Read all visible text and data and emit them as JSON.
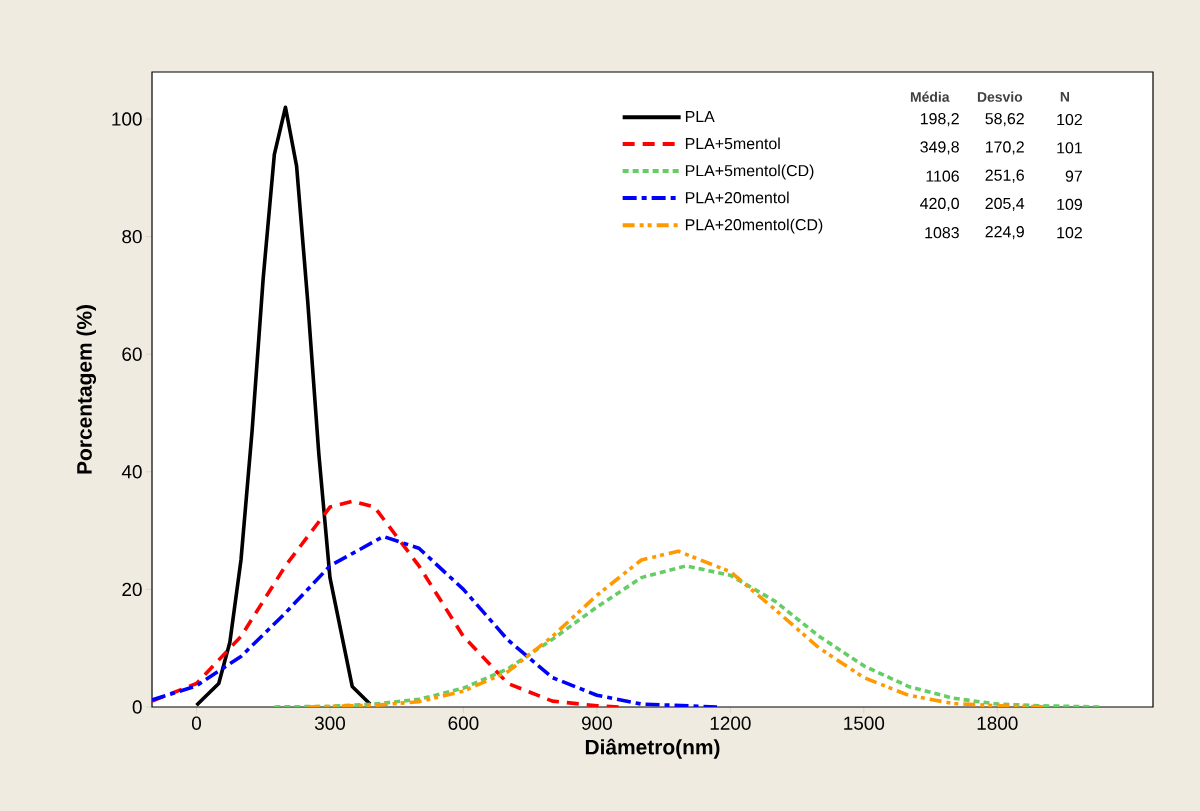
{
  "chart_data": {
    "type": "line",
    "xlabel": "Diâmetro(nm)",
    "ylabel": "Porcentagem (%)",
    "xlim": [
      -100,
      2150
    ],
    "ylim": [
      0,
      108
    ],
    "xticks": [
      0,
      300,
      600,
      900,
      1200,
      1500,
      1800
    ],
    "yticks": [
      0,
      20,
      40,
      60,
      80,
      100
    ],
    "grid": false,
    "legend": "top right",
    "series": [
      {
        "name": "PLA",
        "color": "#000000",
        "line_style": "solid",
        "x": [
          0,
          50,
          75,
          100,
          125,
          150,
          175,
          200,
          225,
          250,
          275,
          300,
          350,
          390
        ],
        "values": [
          0.3,
          4,
          11,
          25,
          47,
          73,
          94,
          102,
          92,
          69,
          43,
          22,
          3.5,
          0.5
        ]
      },
      {
        "name": "PLA+5mentol",
        "color": "#ff0000",
        "line_style": "dashed",
        "x": [
          -100,
          0,
          100,
          200,
          300,
          350,
          400,
          500,
          600,
          700,
          800,
          900,
          950
        ],
        "values": [
          1,
          4,
          12,
          24,
          34,
          35,
          34,
          24,
          12,
          4,
          1,
          0.2,
          0
        ]
      },
      {
        "name": "PLA+5mentol(CD)",
        "color": "#66cc66",
        "line_style": "dotted",
        "x": [
          175,
          300,
          400,
          500,
          600,
          700,
          800,
          900,
          1000,
          1100,
          1200,
          1300,
          1400,
          1500,
          1600,
          1700,
          1800,
          1900,
          2030
        ],
        "values": [
          0,
          0.1,
          0.5,
          1.3,
          3.2,
          6.5,
          11.5,
          17,
          22,
          24,
          22.4,
          18,
          12,
          7,
          3.5,
          1.5,
          0.5,
          0.2,
          0
        ]
      },
      {
        "name": "PLA+20mentol",
        "color": "#0000ff",
        "line_style": "dashdot",
        "x": [
          -100,
          0,
          100,
          200,
          300,
          420,
          500,
          600,
          700,
          800,
          900,
          1000,
          1170
        ],
        "values": [
          1.2,
          3.6,
          8.6,
          16,
          24,
          29,
          27,
          20,
          11.4,
          5,
          2,
          0.5,
          0
        ]
      },
      {
        "name": "PLA+20mentol(CD)",
        "color": "#ff9900",
        "line_style": "dashdotdot",
        "x": [
          250,
          400,
          500,
          600,
          700,
          800,
          900,
          1000,
          1083,
          1200,
          1300,
          1400,
          1500,
          1600,
          1700,
          1800,
          1910
        ],
        "values": [
          0,
          0.3,
          0.9,
          2.7,
          6,
          12,
          19,
          25,
          26.5,
          23,
          16.6,
          10,
          5,
          2,
          0.6,
          0.2,
          0
        ]
      }
    ],
    "annotations": [
      "Média",
      "Desvio",
      "N",
      "198,2",
      "58,62",
      "102",
      "349,8",
      "170,2",
      "101",
      "1106",
      "251,6",
      "97",
      "420,0",
      "205,4",
      "109",
      "1083",
      "224,9",
      "102"
    ]
  }
}
